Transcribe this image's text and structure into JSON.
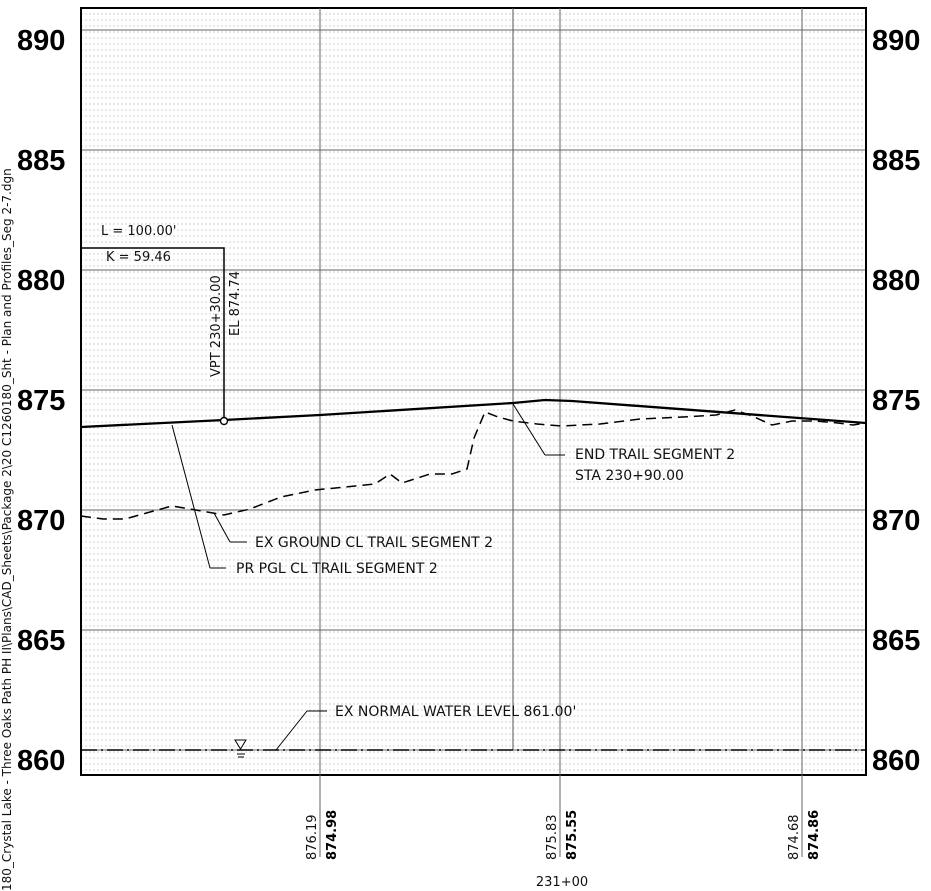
{
  "sheet": {
    "file_path_text": "180_Crystal Lake - Three Oaks Path PH II\\Plans\\CAD_Sheets\\Package 2\\20 C1260180_Sht - Plan and Profiles_Seg 2-7.dgn"
  },
  "axis": {
    "left_labels": [
      "890",
      "885",
      "880",
      "875",
      "870",
      "865",
      "860"
    ],
    "right_labels": [
      "890",
      "885",
      "880",
      "875",
      "870",
      "865",
      "860"
    ]
  },
  "annotations": {
    "vertical_curve_length": "L = 100.00'",
    "vertical_curve_k": "K = 59.46",
    "vpt_station": "VPT 230+30.00",
    "vpt_elevation": "EL 874.74",
    "end_segment_line1": "END TRAIL SEGMENT 2",
    "end_segment_line2": "STA 230+90.00",
    "ex_ground_label": "EX GROUND CL TRAIL SEGMENT 2",
    "pr_pgl_label": "PR PGL CL TRAIL SEGMENT 2",
    "water_level_label": "EX NORMAL WATER LEVEL 861.00'"
  },
  "bottom_elevations": [
    {
      "existing": "876.19",
      "proposed": "874.98"
    },
    {
      "existing": "875.83",
      "proposed": "875.55"
    },
    {
      "existing": "874.68",
      "proposed": "874.86"
    }
  ],
  "station_label": "231+00",
  "colors": {
    "line": "#000000",
    "grid_major": "#666666",
    "grid_minor": "#a8a8a8"
  }
}
